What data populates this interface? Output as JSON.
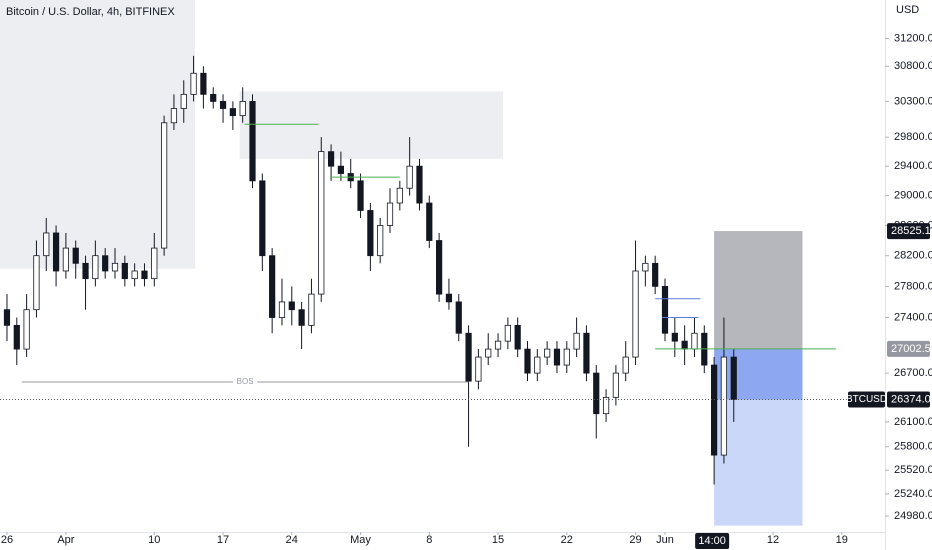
{
  "chart_data": {
    "type": "candlestick",
    "title": "Bitcoin / U.S. Dollar, 4h, BITFINEX",
    "y_unit": "USD",
    "log_scale": true,
    "up_color": "#ffffff",
    "down_color": "#131722",
    "x": [
      0,
      1,
      2,
      3,
      4,
      5,
      6,
      7,
      8,
      9,
      10,
      11,
      12,
      13,
      14,
      15,
      16,
      17,
      18,
      19,
      20,
      21,
      22,
      23,
      24,
      25,
      26,
      27,
      28,
      29,
      30,
      31,
      32,
      33,
      34,
      35,
      36,
      37,
      38,
      39,
      40,
      41,
      42,
      43,
      44,
      45,
      46,
      47,
      48,
      49,
      50,
      51,
      52,
      53,
      54,
      55,
      56,
      57,
      58,
      59,
      60,
      61,
      62,
      63,
      64,
      65,
      66,
      67,
      68,
      69,
      70,
      71,
      72,
      73,
      74
    ],
    "open": [
      27500,
      27300,
      27000,
      27500,
      28200,
      28500,
      28000,
      28300,
      28100,
      27900,
      28200,
      28000,
      28100,
      27900,
      28000,
      27900,
      28300,
      30000,
      30200,
      30400,
      30700,
      30400,
      30300,
      30200,
      30100,
      30300,
      29200,
      28200,
      27400,
      27600,
      27500,
      27300,
      27700,
      29600,
      29400,
      29300,
      29200,
      28800,
      28200,
      28600,
      28900,
      29100,
      29400,
      28900,
      28400,
      27700,
      27600,
      27200,
      26600,
      26900,
      27000,
      27100,
      27300,
      27000,
      26700,
      26900,
      27000,
      26800,
      27000,
      27200,
      26700,
      26200,
      26400,
      26700,
      26900,
      28000,
      28100,
      27800,
      27200,
      27100,
      27000,
      27200,
      26800,
      25700,
      26900
    ],
    "high": [
      27700,
      27400,
      27700,
      28400,
      28700,
      28600,
      28500,
      28400,
      28200,
      28400,
      28300,
      28300,
      28200,
      28100,
      28100,
      28500,
      30100,
      30400,
      30600,
      30950,
      30800,
      30500,
      30400,
      30300,
      30500,
      30400,
      29300,
      28300,
      27900,
      27800,
      27600,
      27900,
      29800,
      29700,
      29600,
      29500,
      29300,
      28900,
      28700,
      29100,
      29200,
      29800,
      29500,
      29000,
      28500,
      27900,
      27700,
      27300,
      27000,
      27200,
      27200,
      27400,
      27400,
      27100,
      27000,
      27100,
      27100,
      27100,
      27400,
      27300,
      26800,
      26500,
      26800,
      27100,
      28400,
      28200,
      28200,
      27900,
      27400,
      27300,
      27400,
      27300,
      26900,
      27400,
      27000
    ],
    "low": [
      27100,
      26800,
      26900,
      27400,
      28000,
      27800,
      27900,
      27900,
      27500,
      27800,
      27900,
      27900,
      27800,
      27800,
      27800,
      27800,
      28200,
      29900,
      30000,
      30300,
      30200,
      30200,
      30000,
      29900,
      30000,
      29100,
      28000,
      27200,
      27300,
      27300,
      27000,
      27200,
      27600,
      29200,
      29200,
      29100,
      28700,
      28000,
      28100,
      28500,
      28800,
      29000,
      28800,
      28300,
      27600,
      27500,
      27100,
      25800,
      26500,
      26800,
      26900,
      27000,
      26900,
      26600,
      26600,
      26800,
      26700,
      26700,
      26900,
      26600,
      25900,
      26100,
      26300,
      26600,
      26800,
      27800,
      27700,
      27100,
      26900,
      26800,
      26900,
      26700,
      25350,
      25600,
      26100
    ],
    "close": [
      27300,
      27000,
      27500,
      28200,
      28500,
      28000,
      28300,
      28100,
      27900,
      28200,
      28000,
      28100,
      27900,
      28000,
      27900,
      28300,
      30000,
      30200,
      30400,
      30700,
      30400,
      30300,
      30200,
      30100,
      30300,
      29200,
      28200,
      27400,
      27600,
      27500,
      27300,
      27700,
      29600,
      29400,
      29300,
      29200,
      28800,
      28200,
      28600,
      28900,
      29100,
      29400,
      28900,
      28400,
      27700,
      27600,
      27200,
      26600,
      26900,
      27000,
      27100,
      27300,
      27000,
      26700,
      26900,
      27000,
      26800,
      27000,
      27200,
      26700,
      26200,
      26400,
      26700,
      26900,
      28000,
      28100,
      27800,
      27200,
      27100,
      27000,
      27200,
      26800,
      25700,
      26900,
      26374
    ],
    "xlim": [
      -0.71,
      89.4
    ],
    "xticks": [
      {
        "value": 0,
        "label": "26"
      },
      {
        "value": 6,
        "label": "Apr"
      },
      {
        "value": 15,
        "label": "10"
      },
      {
        "value": 22,
        "label": "17"
      },
      {
        "value": 29,
        "label": "24"
      },
      {
        "value": 36,
        "label": "May"
      },
      {
        "value": 43,
        "label": "8"
      },
      {
        "value": 50,
        "label": "15"
      },
      {
        "value": 57,
        "label": "22"
      },
      {
        "value": 64,
        "label": "29"
      },
      {
        "value": 67,
        "label": "Jun"
      },
      {
        "value": 78,
        "label": "12"
      },
      {
        "value": 85,
        "label": "19"
      }
    ],
    "crosshair_x": {
      "value": 71.8,
      "label": "14:00"
    },
    "ylim": [
      24796,
      31765
    ],
    "yticks": [
      {
        "value": 31200,
        "label": "31200.0"
      },
      {
        "value": 30800,
        "label": "30800.0"
      },
      {
        "value": 30300,
        "label": "30300.0"
      },
      {
        "value": 29800,
        "label": "29800.0"
      },
      {
        "value": 29400,
        "label": "29400.0"
      },
      {
        "value": 29000,
        "label": "29000.0"
      },
      {
        "value": 28600,
        "label": "28600.0"
      },
      {
        "value": 28200,
        "label": "28200.0"
      },
      {
        "value": 27800,
        "label": "27800.0"
      },
      {
        "value": 27400,
        "label": "27400.0"
      },
      {
        "value": 26700,
        "label": "26700.0"
      },
      {
        "value": 26100,
        "label": "26100.0"
      },
      {
        "value": 25800,
        "label": "25800.0"
      },
      {
        "value": 25520,
        "label": "25520.0"
      },
      {
        "value": 25240,
        "label": "25240.0"
      },
      {
        "value": 24980,
        "label": "24980.0"
      }
    ],
    "symbol_label": "BTCUSD",
    "last_price": {
      "value": 26374,
      "label": "26374.0"
    },
    "zones": [
      {
        "x": [
          -0.71,
          19.15
        ],
        "y": [
          28030,
          31765
        ],
        "color": "#eceef1"
      },
      {
        "x": [
          23.7,
          50.5
        ],
        "y": [
          29500,
          30440
        ],
        "color": "#eceef1"
      }
    ],
    "levels": [
      {
        "x": [
          24.2,
          31.7
        ],
        "y": 29980,
        "color": "#4caf50"
      },
      {
        "x": [
          32.9,
          40.0
        ],
        "y": 29250,
        "color": "#4caf50"
      },
      {
        "x": [
          66.0,
          84.4
        ],
        "y": 27002.5,
        "color": "#4caf50"
      },
      {
        "x": [
          66.0,
          70.6
        ],
        "y": 27640,
        "color": "#5b7fe0"
      },
      {
        "x": [
          66.7,
          70.4
        ],
        "y": 27400,
        "color": "#5b7fe0"
      }
    ],
    "bos": {
      "label": "BOS",
      "x": [
        1.5,
        47
      ],
      "y": 26590
    },
    "position": {
      "x": [
        72,
        81
      ],
      "target": 28525.1,
      "entry": 27002.5,
      "stop": 24870
    }
  }
}
